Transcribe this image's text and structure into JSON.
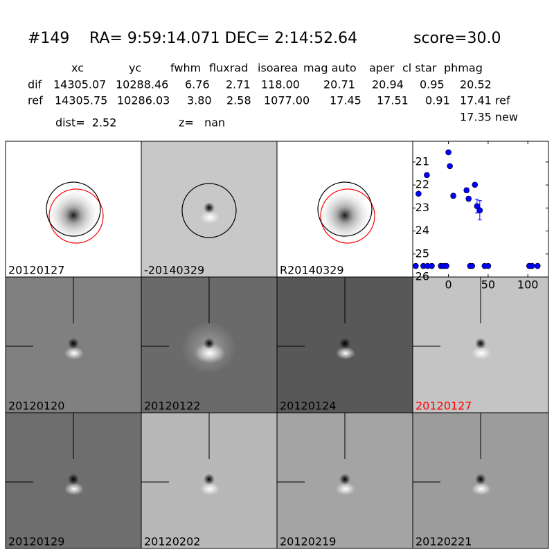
{
  "header": {
    "id": "#149",
    "coords": "RA= 9:59:14.071 DEC= 2:14:52.64",
    "score": "score=30.0",
    "dist": "dist=  2.52",
    "z": "z=   nan"
  },
  "table": {
    "columns": [
      "xc",
      "yc",
      "fwhm",
      "fluxrad",
      "isoarea",
      "mag auto",
      "aper",
      "cl star",
      "phmag"
    ],
    "rows": [
      [
        "dif",
        "14305.07",
        "10288.46",
        "6.76",
        "2.71",
        "118.00",
        "20.71",
        "20.94",
        "0.95",
        "20.52"
      ],
      [
        "ref",
        "14305.75",
        "10286.03",
        "3.80",
        "2.58",
        "1077.00",
        "17.45",
        "17.51",
        "0.91",
        "17.41 ref"
      ]
    ],
    "note": "17.35 new"
  },
  "panels": [
    {
      "label": "20120127"
    },
    {
      "label": "-20140329"
    },
    {
      "label": "R20140329"
    },
    {
      "label": "20120120"
    },
    {
      "label": "20120122"
    },
    {
      "label": "20120124"
    },
    {
      "label": "20120127",
      "label_color": "#ff0000"
    },
    {
      "label": "20120129"
    },
    {
      "label": "20120202"
    },
    {
      "label": "20120219"
    },
    {
      "label": "20120221"
    }
  ],
  "chart_data": {
    "type": "scatter",
    "color": "#0000ff",
    "x": [
      -37.7,
      -27.2,
      0,
      1.8,
      6.1,
      22.8,
      25.4,
      33.3,
      36,
      39.5,
      -41.2,
      -31.6,
      -26.3,
      -21,
      -9.6,
      -6.1,
      -2.6,
      27.2,
      29.8,
      45.6,
      50,
      101.8,
      105.3,
      112.3
    ],
    "values": [
      22.38,
      21.57,
      20.58,
      21.18,
      22.47,
      22.23,
      22.6,
      21.99,
      22.92,
      23.1,
      25.52,
      25.52,
      25.52,
      25.52,
      25.52,
      25.52,
      25.52,
      25.52,
      25.52,
      25.52,
      25.52,
      25.52,
      25.52,
      25.52
    ],
    "errors": [
      null,
      null,
      null,
      null,
      0.1,
      0.1,
      0.1,
      null,
      0.3,
      0.42,
      null,
      null,
      null,
      null,
      null,
      null,
      null,
      null,
      null,
      null,
      null,
      null,
      null,
      null
    ],
    "xlim": [
      -45,
      126
    ],
    "ylim": [
      20.1,
      26
    ],
    "y_inverted": true,
    "xticks": [
      0,
      50,
      100
    ],
    "yticks": [
      21,
      22,
      23,
      24,
      25,
      26
    ]
  }
}
